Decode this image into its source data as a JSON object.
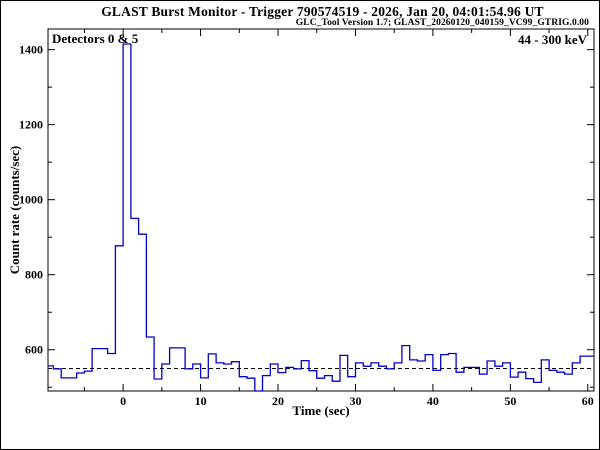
{
  "header": {
    "title": "GLAST Burst Monitor  -  Trigger 790574519  -  2026, Jan 20, 04:01:54.96 UT",
    "subtitle": "GLC_Tool Version 1.7; GLAST_20260120_040159_VC99_GTRIG.0.00"
  },
  "annotations": {
    "detectors_label": "Detectors 0 & 5",
    "energy_range_label": "44 - 300 keV"
  },
  "colors": {
    "line": "#0000CC",
    "frame": "#000000",
    "text": "#000000",
    "background": "#ffffff"
  },
  "chart_data": {
    "type": "line",
    "subtype": "step_histogram",
    "title": "",
    "xlabel": "Time (sec)",
    "ylabel": "Count rate (counts/sec)",
    "xlim": [
      -9.7,
      60.8
    ],
    "ylim": [
      490,
      1455
    ],
    "x_major_ticks": [
      0,
      10,
      20,
      30,
      40,
      50,
      60
    ],
    "x_minor_step": 5,
    "y_major_ticks": [
      600,
      800,
      1000,
      1200,
      1400
    ],
    "y_minor_step": 100,
    "grid": false,
    "legend": false,
    "baseline": {
      "value": 550,
      "style": "dashed"
    },
    "bin_start": -10,
    "bin_width": 1,
    "values": [
      557,
      549,
      525,
      525,
      538,
      543,
      603,
      603,
      590,
      877,
      1415,
      950,
      908,
      634,
      522,
      562,
      605,
      605,
      549,
      562,
      525,
      589,
      565,
      562,
      568,
      528,
      524,
      490,
      531,
      562,
      539,
      553,
      549,
      571,
      544,
      524,
      531,
      516,
      585,
      528,
      565,
      556,
      565,
      556,
      549,
      565,
      611,
      573,
      570,
      587,
      545,
      587,
      590,
      540,
      553,
      553,
      535,
      570,
      556,
      565,
      527,
      540,
      523,
      513,
      573,
      545,
      540,
      535,
      565,
      583,
      583
    ]
  }
}
